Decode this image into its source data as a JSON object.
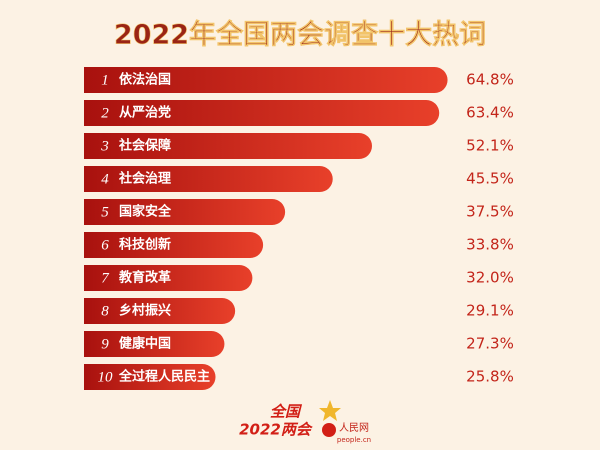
{
  "chart_data": {
    "type": "bar",
    "orientation": "horizontal",
    "title": "2022年全国两会调查十大热词",
    "ranks": [
      "1",
      "2",
      "3",
      "4",
      "5",
      "6",
      "7",
      "8",
      "9",
      "10"
    ],
    "categories": [
      "依法治国",
      "从严治党",
      "社会保障",
      "社会治理",
      "国家安全",
      "科技创新",
      "教育改革",
      "乡村振兴",
      "健康中国",
      "全过程人民民主"
    ],
    "values": [
      64.8,
      63.4,
      52.1,
      45.5,
      37.5,
      33.8,
      32.0,
      29.1,
      27.3,
      25.8
    ],
    "value_labels": [
      "64.8%",
      "63.4%",
      "52.1%",
      "45.5%",
      "37.5%",
      "33.8%",
      "32.0%",
      "29.1%",
      "27.3%",
      "25.8%"
    ],
    "color": "#e8402a",
    "annotations": [
      "全国",
      "2022两会",
      "人民网",
      "people.cn"
    ]
  }
}
